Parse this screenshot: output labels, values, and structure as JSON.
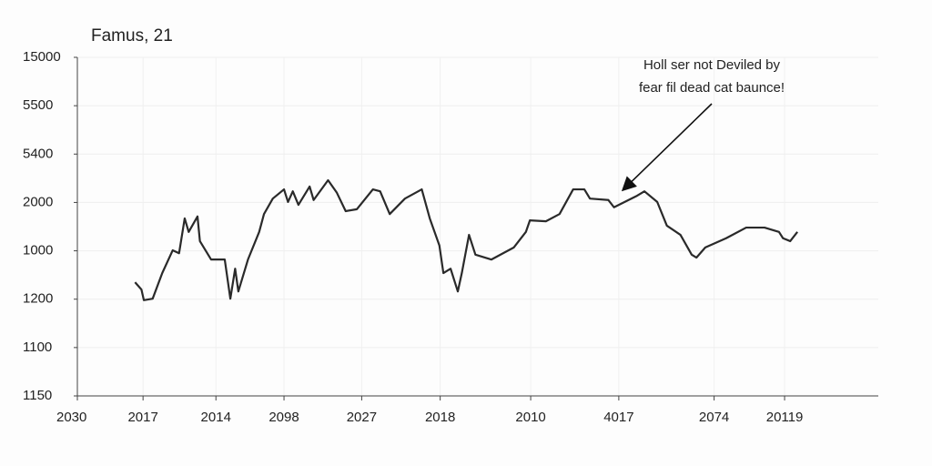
{
  "chart_data": {
    "type": "line",
    "title": "Famus, 21",
    "x": [
      7.2,
      8.0,
      8.3,
      9.4,
      10.6,
      11.9,
      12.7,
      13.4,
      13.9,
      15.0,
      15.3,
      16.7,
      18.4,
      19.1,
      19.7,
      20.1,
      21.3,
      22.7,
      23.3,
      24.4,
      25.8,
      26.3,
      26.9,
      27.6,
      29.0,
      29.5,
      31.3,
      32.4,
      33.5,
      34.9,
      36.9,
      37.8,
      39.0,
      40.9,
      43.0,
      44.0,
      45.2,
      45.7,
      46.6,
      47.5,
      48.0,
      48.9,
      49.7,
      51.7,
      54.5,
      56.0,
      56.5,
      58.5,
      60.2,
      61.9,
      63.3,
      64.0,
      66.3,
      67.0,
      69.9,
      70.8,
      72.4,
      73.6,
      75.3,
      76.7,
      77.3,
      78.4,
      81.0,
      83.5,
      85.8,
      87.6,
      88.1,
      89.0,
      89.9
    ],
    "series": [
      {
        "color": "#2a2a2a",
        "values": [
          2.35,
          2.2,
          1.98,
          2.01,
          2.54,
          3.01,
          2.95,
          3.67,
          3.39,
          3.71,
          3.2,
          2.82,
          2.82,
          2.01,
          2.63,
          2.16,
          2.82,
          3.39,
          3.76,
          4.08,
          4.27,
          4.01,
          4.23,
          3.95,
          4.33,
          4.05,
          4.46,
          4.2,
          3.82,
          3.86,
          4.27,
          4.23,
          3.76,
          4.08,
          4.27,
          3.67,
          3.11,
          2.54,
          2.63,
          2.16,
          2.54,
          3.33,
          2.92,
          2.82,
          3.07,
          3.39,
          3.63,
          3.61,
          3.76,
          4.27,
          4.27,
          4.08,
          4.05,
          3.9,
          4.14,
          4.23,
          4.01,
          3.52,
          3.33,
          2.92,
          2.86,
          3.07,
          3.26,
          3.48,
          3.48,
          3.39,
          3.26,
          3.2,
          3.39
        ]
      }
    ],
    "xlim": [
      0,
      100
    ],
    "ylim": [
      0,
      7
    ],
    "xticks": [
      {
        "value": 0,
        "label": "2030"
      },
      {
        "value": 8.2,
        "label": "2017"
      },
      {
        "value": 17.3,
        "label": "2014"
      },
      {
        "value": 25.8,
        "label": "2098"
      },
      {
        "value": 35.5,
        "label": "2027"
      },
      {
        "value": 45.3,
        "label": "2018"
      },
      {
        "value": 56.6,
        "label": "2010"
      },
      {
        "value": 67.6,
        "label": "4017"
      },
      {
        "value": 79.5,
        "label": "2074"
      },
      {
        "value": 88.3,
        "label": "20119"
      }
    ],
    "yticks": [
      {
        "value": 0,
        "label": "1150"
      },
      {
        "value": 1,
        "label": "1100"
      },
      {
        "value": 2,
        "label": "1200"
      },
      {
        "value": 3,
        "label": "1000"
      },
      {
        "value": 4,
        "label": "2000"
      },
      {
        "value": 5,
        "label": "5400"
      },
      {
        "value": 6,
        "label": "5500"
      },
      {
        "value": 7,
        "label": "15000"
      }
    ],
    "grid": true,
    "annotation": {
      "lines": [
        "Holl ser not Deviled by",
        "fear fil dead cat baunce!"
      ],
      "xy": [
        68.2,
        4.27
      ]
    }
  }
}
